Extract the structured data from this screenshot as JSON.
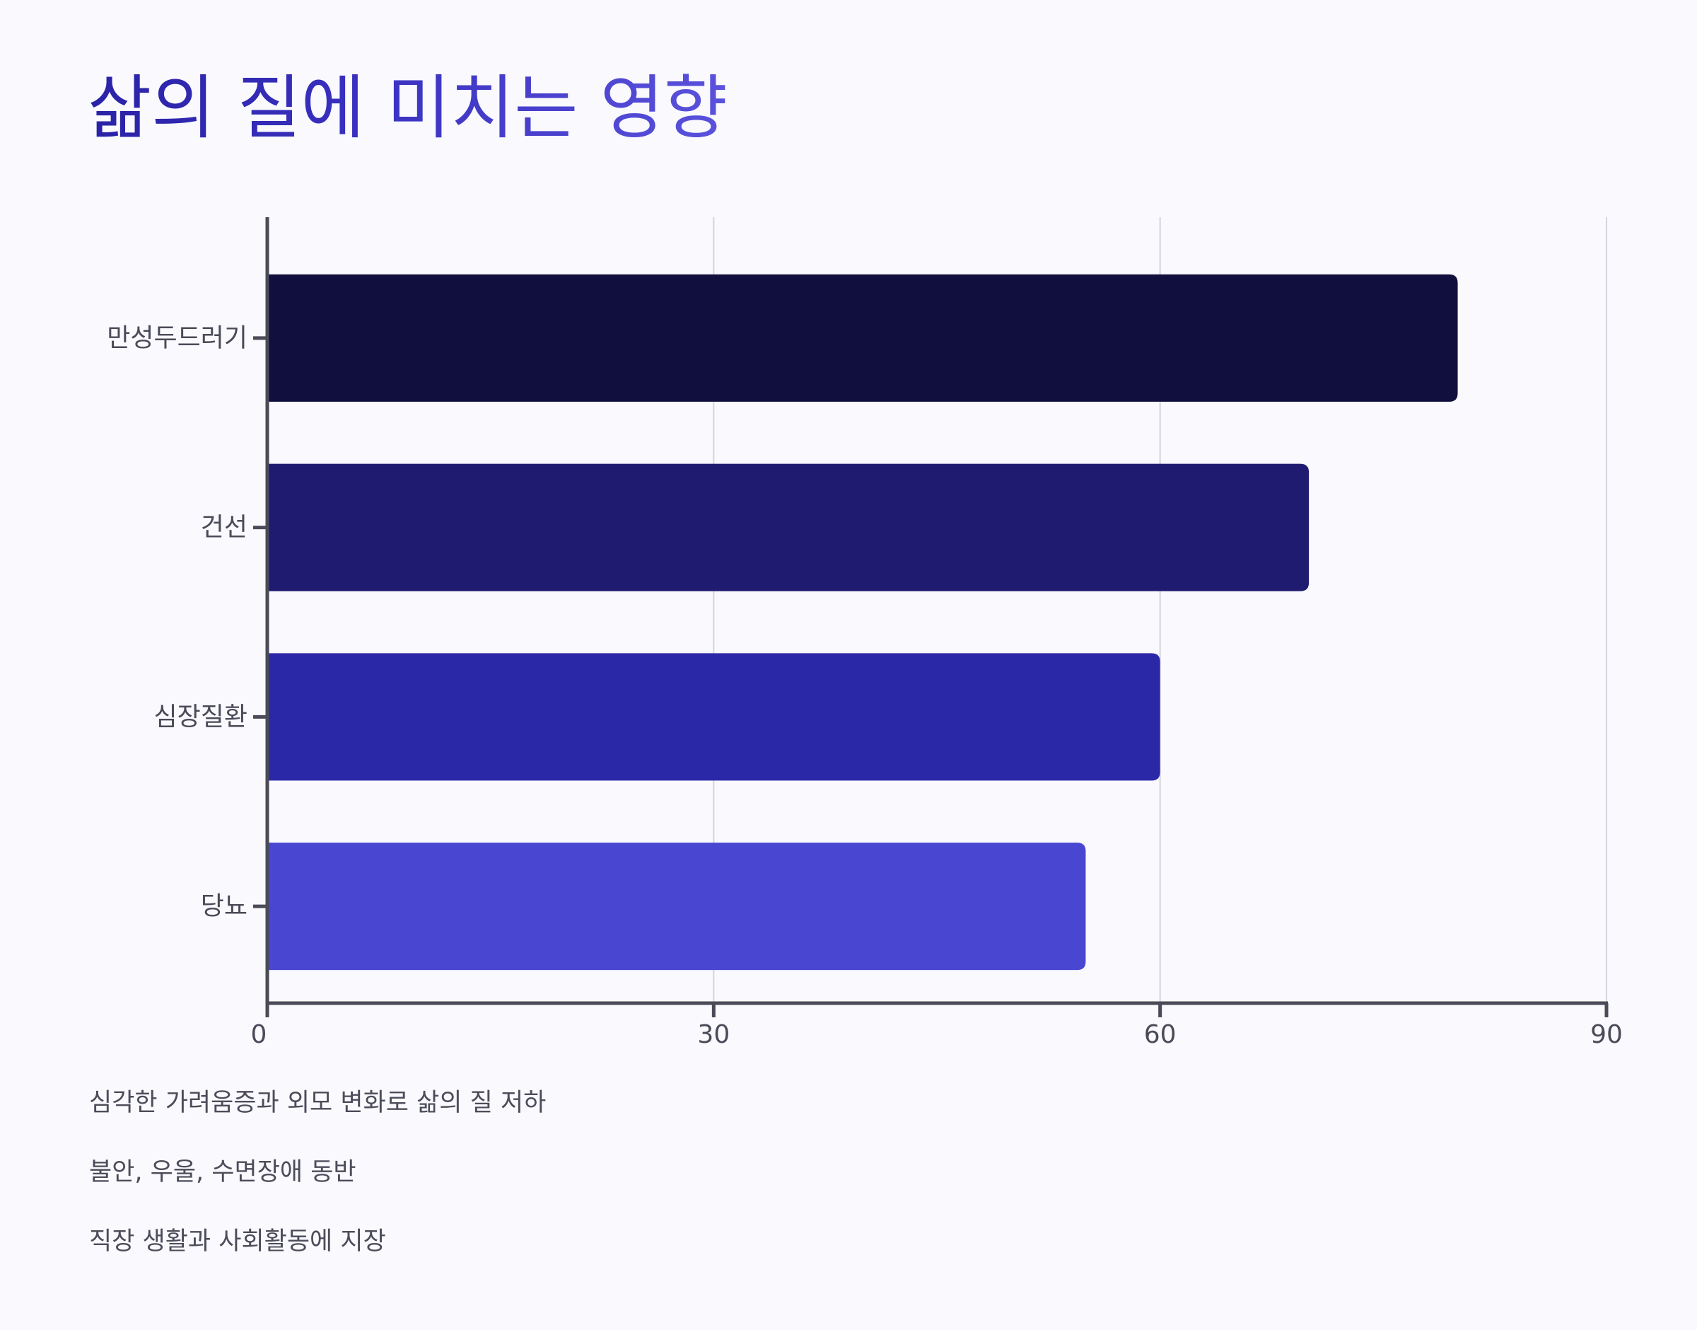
{
  "title": "삶의 질에 미치는 영향",
  "colors": {
    "background": "#f9f9fe",
    "axis": "#4a4a58",
    "grid": "#d4d4dc",
    "bars": [
      "#110f3d",
      "#1e1b70",
      "#2b28a8",
      "#4946d2"
    ],
    "title_gradient": [
      "#2a22a6",
      "#5a52dc"
    ]
  },
  "chart_data": {
    "type": "bar",
    "orientation": "horizontal",
    "categories": [
      "만성두드러기",
      "건선",
      "심장질환",
      "당뇨"
    ],
    "values": [
      80,
      70,
      60,
      55
    ],
    "xlim": [
      0,
      90
    ],
    "xticks": [
      "0",
      "30",
      "60",
      "90"
    ],
    "grid": true,
    "xlabel": "",
    "ylabel": ""
  },
  "notes": [
    "심각한 가려움증과 외모 변화로 삶의 질 저하",
    "불안, 우울, 수면장애 동반",
    "직장 생활과 사회활동에 지장"
  ]
}
